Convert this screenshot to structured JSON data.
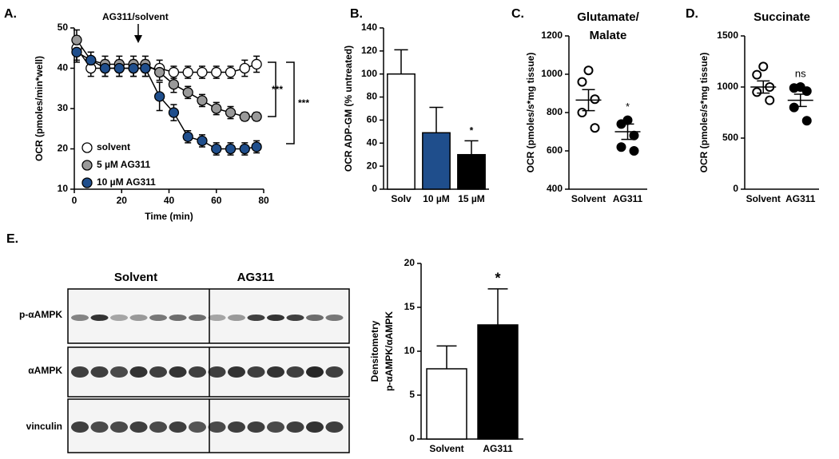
{
  "chart_data": [
    {
      "type": "line",
      "panel": "A.",
      "xlabel": "Time (min)",
      "ylabel": "OCR (pmoles/min*well)",
      "annotation": "AG311/solvent",
      "annotation_x": 27,
      "significance": [
        "***",
        "***"
      ],
      "x": [
        1,
        7,
        13,
        19,
        25,
        30,
        36,
        42,
        48,
        54,
        60,
        66,
        72,
        77
      ],
      "series": [
        {
          "name": "solvent",
          "color": "#ffffff",
          "values": [
            45,
            40,
            40,
            40,
            40,
            40,
            40,
            39,
            39,
            39,
            39,
            39,
            40,
            41
          ],
          "errors": [
            3,
            2,
            2,
            2,
            2,
            2,
            2,
            1.5,
            1.5,
            1.5,
            1.5,
            1.5,
            2,
            2
          ]
        },
        {
          "name": "5 µM AG311",
          "color": "#999999",
          "values": [
            47,
            42,
            41,
            41,
            41,
            41,
            39,
            36,
            34,
            32,
            30,
            29,
            28,
            28
          ],
          "errors": [
            2.5,
            2,
            2,
            2,
            2,
            2,
            2,
            2,
            1.5,
            1.5,
            1.5,
            1.5,
            1,
            1
          ]
        },
        {
          "name": "10 µM AG311",
          "color": "#1f4e8c",
          "values": [
            44,
            42,
            40,
            40,
            40,
            40,
            33,
            29,
            23,
            22,
            20,
            20,
            20,
            20.5
          ],
          "errors": [
            2.5,
            2,
            2,
            2,
            2,
            2,
            3.5,
            2,
            1.5,
            1.5,
            1.5,
            1.5,
            1.5,
            1.5
          ]
        }
      ],
      "xlim": [
        0,
        80
      ],
      "xticks": [
        0,
        20,
        40,
        60,
        80
      ],
      "ylim": [
        10,
        50
      ],
      "yticks": [
        10,
        20,
        30,
        40,
        50
      ],
      "legend": "lower left"
    },
    {
      "type": "bar",
      "panel": "B.",
      "ylabel": "OCR ADP-GM (% untreated)",
      "categories": [
        "Solv",
        "10 µM",
        "15 µM"
      ],
      "values": [
        100,
        49,
        30
      ],
      "errors": [
        21,
        22,
        12
      ],
      "colors": [
        "#ffffff",
        "#1f4e8c",
        "#000000"
      ],
      "significance": [
        null,
        null,
        "*"
      ],
      "ylim": [
        0,
        140
      ],
      "yticks": [
        0,
        20,
        40,
        60,
        80,
        100,
        120,
        140
      ]
    },
    {
      "type": "dot",
      "panel": "C.",
      "title": [
        "Glutamate/",
        "Malate"
      ],
      "ylabel": "OCR (pmoles/s*mg tissue)",
      "categories": [
        "Solvent",
        "AG311"
      ],
      "points": [
        [
          1020,
          960,
          870,
          800,
          720
        ],
        [
          760,
          740,
          680,
          620,
          600
        ]
      ],
      "means": [
        865,
        700
      ],
      "sems": [
        55,
        40
      ],
      "colors": [
        "#ffffff",
        "#000000"
      ],
      "significance": [
        null,
        "*"
      ],
      "ylim": [
        400,
        1200
      ],
      "yticks": [
        400,
        600,
        800,
        1000,
        1200
      ]
    },
    {
      "type": "dot",
      "panel": "D.",
      "title": [
        "Succinate"
      ],
      "ylabel": "OCR (pmoles/s*mg tissue)",
      "categories": [
        "Solvent",
        "AG311"
      ],
      "points": [
        [
          1200,
          1120,
          1000,
          950,
          870
        ],
        [
          1000,
          990,
          960,
          800,
          670
        ]
      ],
      "means": [
        1000,
        870
      ],
      "sems": [
        60,
        60
      ],
      "colors": [
        "#ffffff",
        "#000000"
      ],
      "significance": [
        null,
        "ns"
      ],
      "ylim": [
        0,
        1500
      ],
      "yticks": [
        0,
        500,
        1000,
        1500
      ]
    },
    {
      "type": "bar",
      "ylabel": [
        "Densitometry",
        "p-αAMPK/αAMPK"
      ],
      "categories": [
        "Solvent",
        "AG311"
      ],
      "values": [
        8,
        13
      ],
      "errors": [
        2.6,
        4.1
      ],
      "colors": [
        "#ffffff",
        "#000000"
      ],
      "significance": [
        null,
        "*"
      ],
      "ylim": [
        0,
        20
      ],
      "yticks": [
        0,
        5,
        10,
        15,
        20
      ]
    }
  ],
  "blot": {
    "panel": "E.",
    "groups": [
      "Solvent",
      "AG311"
    ],
    "rows": [
      "p-αAMPK",
      "αAMPK",
      "vinculin"
    ]
  }
}
